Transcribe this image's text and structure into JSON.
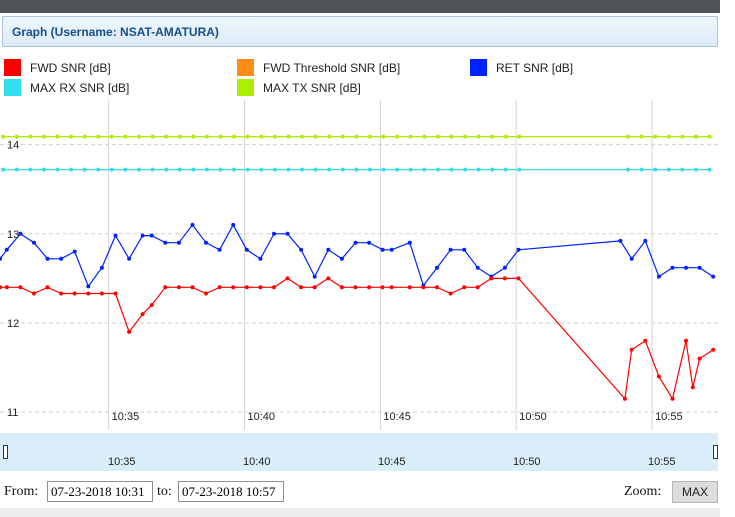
{
  "header": {
    "title": "Graph (Username: NSAT-AMATURA)"
  },
  "legend": [
    {
      "label": "FWD SNR [dB]",
      "color": "#ff0000"
    },
    {
      "label": "FWD Threshold SNR [dB]",
      "color": "#ff8c1a"
    },
    {
      "label": "RET SNR [dB]",
      "color": "#0022ff"
    },
    {
      "label": "MAX RX SNR [dB]",
      "color": "#33ddee"
    },
    {
      "label": "MAX TX SNR [dB]",
      "color": "#aaee00"
    }
  ],
  "navigator": {
    "ticks": [
      "10:35",
      "10:40",
      "10:45",
      "10:50",
      "10:55"
    ]
  },
  "footer": {
    "from_label": "From:",
    "from_value": "07-23-2018 10:31",
    "to_label": "to:",
    "to_value": "07-23-2018 10:57",
    "zoom_label": "Zoom:",
    "zoom_button": "MAX"
  },
  "chart_data": {
    "type": "line",
    "x_unit": "minute (10:31 to 10:57)",
    "xlim": [
      "10:31:00",
      "10:57:30"
    ],
    "ylim": [
      10.8,
      14.5
    ],
    "yticks": [
      "11",
      "12",
      "13",
      "14"
    ],
    "xticks": [
      "10:35",
      "10:40",
      "10:45",
      "10:50",
      "10:55"
    ],
    "grid": "vertical and horizontal",
    "series": [
      {
        "name": "MAX TX SNR [dB]",
        "color": "#aaee00",
        "x": [
          "10:31:07",
          "10:31:37",
          "10:32:07",
          "10:32:37",
          "10:33:07",
          "10:33:37",
          "10:34:07",
          "10:34:37",
          "10:35:07",
          "10:35:37",
          "10:36:07",
          "10:36:37",
          "10:37:07",
          "10:37:37",
          "10:38:07",
          "10:38:37",
          "10:39:07",
          "10:39:37",
          "10:40:07",
          "10:40:37",
          "10:41:07",
          "10:41:37",
          "10:42:07",
          "10:42:37",
          "10:43:07",
          "10:43:37",
          "10:44:07",
          "10:44:37",
          "10:45:07",
          "10:45:37",
          "10:46:07",
          "10:46:37",
          "10:47:07",
          "10:47:37",
          "10:48:07",
          "10:48:37",
          "10:49:07",
          "10:49:37",
          "10:50:07",
          "10:54:07",
          "10:54:37",
          "10:55:07",
          "10:55:37",
          "10:56:07",
          "10:56:37",
          "10:57:07"
        ],
        "y": [
          14.09,
          14.09,
          14.09,
          14.09,
          14.09,
          14.09,
          14.09,
          14.09,
          14.09,
          14.09,
          14.09,
          14.09,
          14.09,
          14.09,
          14.09,
          14.09,
          14.09,
          14.09,
          14.09,
          14.09,
          14.09,
          14.09,
          14.09,
          14.09,
          14.09,
          14.09,
          14.09,
          14.09,
          14.09,
          14.09,
          14.09,
          14.09,
          14.09,
          14.09,
          14.09,
          14.09,
          14.09,
          14.09,
          14.09,
          14.09,
          14.09,
          14.09,
          14.09,
          14.09,
          14.09,
          14.09
        ]
      },
      {
        "name": "MAX RX SNR [dB]",
        "color": "#33ddee",
        "x": [
          "10:31:07",
          "10:31:37",
          "10:32:07",
          "10:32:37",
          "10:33:07",
          "10:33:37",
          "10:34:07",
          "10:34:37",
          "10:35:07",
          "10:35:37",
          "10:36:07",
          "10:36:37",
          "10:37:07",
          "10:37:37",
          "10:38:07",
          "10:38:37",
          "10:39:07",
          "10:39:37",
          "10:40:07",
          "10:40:37",
          "10:41:07",
          "10:41:37",
          "10:42:07",
          "10:42:37",
          "10:43:07",
          "10:43:37",
          "10:44:07",
          "10:44:37",
          "10:45:07",
          "10:45:37",
          "10:46:07",
          "10:46:37",
          "10:47:07",
          "10:47:37",
          "10:48:07",
          "10:48:37",
          "10:49:07",
          "10:49:37",
          "10:50:07",
          "10:54:07",
          "10:54:37",
          "10:55:07",
          "10:55:37",
          "10:56:07",
          "10:56:37",
          "10:57:07"
        ],
        "y": [
          13.72,
          13.72,
          13.72,
          13.72,
          13.72,
          13.72,
          13.72,
          13.72,
          13.72,
          13.72,
          13.72,
          13.72,
          13.72,
          13.72,
          13.72,
          13.72,
          13.72,
          13.72,
          13.72,
          13.72,
          13.72,
          13.72,
          13.72,
          13.72,
          13.72,
          13.72,
          13.72,
          13.72,
          13.72,
          13.72,
          13.72,
          13.72,
          13.72,
          13.72,
          13.72,
          13.72,
          13.72,
          13.72,
          13.72,
          13.72,
          13.72,
          13.72,
          13.72,
          13.72,
          13.72,
          13.72
        ]
      },
      {
        "name": "RET SNR [dB]",
        "color": "#0022ff",
        "x": [
          "10:31:00",
          "10:31:15",
          "10:31:45",
          "10:32:15",
          "10:32:45",
          "10:33:15",
          "10:33:45",
          "10:34:15",
          "10:34:45",
          "10:35:15",
          "10:35:45",
          "10:36:15",
          "10:36:35",
          "10:37:05",
          "10:37:35",
          "10:38:05",
          "10:38:35",
          "10:39:05",
          "10:39:35",
          "10:40:05",
          "10:40:35",
          "10:41:05",
          "10:41:35",
          "10:42:05",
          "10:42:35",
          "10:43:05",
          "10:43:35",
          "10:44:05",
          "10:44:35",
          "10:45:05",
          "10:45:25",
          "10:46:05",
          "10:46:35",
          "10:47:05",
          "10:47:35",
          "10:48:05",
          "10:48:35",
          "10:49:05",
          "10:49:35",
          "10:50:05",
          "10:53:50",
          "10:54:15",
          "10:54:45",
          "10:55:15",
          "10:55:45",
          "10:56:15",
          "10:56:45",
          "10:57:15"
        ],
        "y": [
          12.72,
          12.82,
          13.0,
          12.9,
          12.72,
          12.72,
          12.8,
          12.41,
          12.62,
          12.98,
          12.72,
          12.98,
          12.98,
          12.9,
          12.9,
          13.1,
          12.9,
          12.82,
          13.1,
          12.82,
          12.72,
          13.0,
          13.0,
          12.82,
          12.52,
          12.82,
          12.72,
          12.9,
          12.9,
          12.82,
          12.82,
          12.9,
          12.42,
          12.62,
          12.82,
          12.82,
          12.62,
          12.52,
          12.62,
          12.82,
          12.92,
          12.72,
          12.92,
          12.52,
          12.62,
          12.62,
          12.62,
          12.52
        ]
      },
      {
        "name": "FWD SNR [dB]",
        "color": "#ff0000",
        "x": [
          "10:31:00",
          "10:31:15",
          "10:31:45",
          "10:32:15",
          "10:32:45",
          "10:33:15",
          "10:33:45",
          "10:34:15",
          "10:34:45",
          "10:35:15",
          "10:35:45",
          "10:36:15",
          "10:36:35",
          "10:37:05",
          "10:37:35",
          "10:38:05",
          "10:38:35",
          "10:39:05",
          "10:39:35",
          "10:40:05",
          "10:40:35",
          "10:41:05",
          "10:41:35",
          "10:42:05",
          "10:42:35",
          "10:43:05",
          "10:43:35",
          "10:44:05",
          "10:44:35",
          "10:45:05",
          "10:45:25",
          "10:46:05",
          "10:46:35",
          "10:47:05",
          "10:47:35",
          "10:48:05",
          "10:48:35",
          "10:49:05",
          "10:49:35",
          "10:50:05",
          "10:54:00",
          "10:54:15",
          "10:54:45",
          "10:55:15",
          "10:55:45",
          "10:56:15",
          "10:56:30",
          "10:56:45",
          "10:57:15"
        ],
        "y": [
          12.4,
          12.4,
          12.4,
          12.33,
          12.4,
          12.33,
          12.33,
          12.33,
          12.33,
          12.33,
          11.9,
          12.1,
          12.2,
          12.4,
          12.4,
          12.4,
          12.33,
          12.4,
          12.4,
          12.4,
          12.4,
          12.4,
          12.5,
          12.4,
          12.4,
          12.5,
          12.4,
          12.4,
          12.4,
          12.4,
          12.4,
          12.4,
          12.4,
          12.4,
          12.33,
          12.4,
          12.4,
          12.5,
          12.5,
          12.5,
          11.15,
          11.7,
          11.8,
          11.4,
          11.15,
          11.8,
          11.28,
          11.6,
          11.7
        ]
      }
    ]
  }
}
